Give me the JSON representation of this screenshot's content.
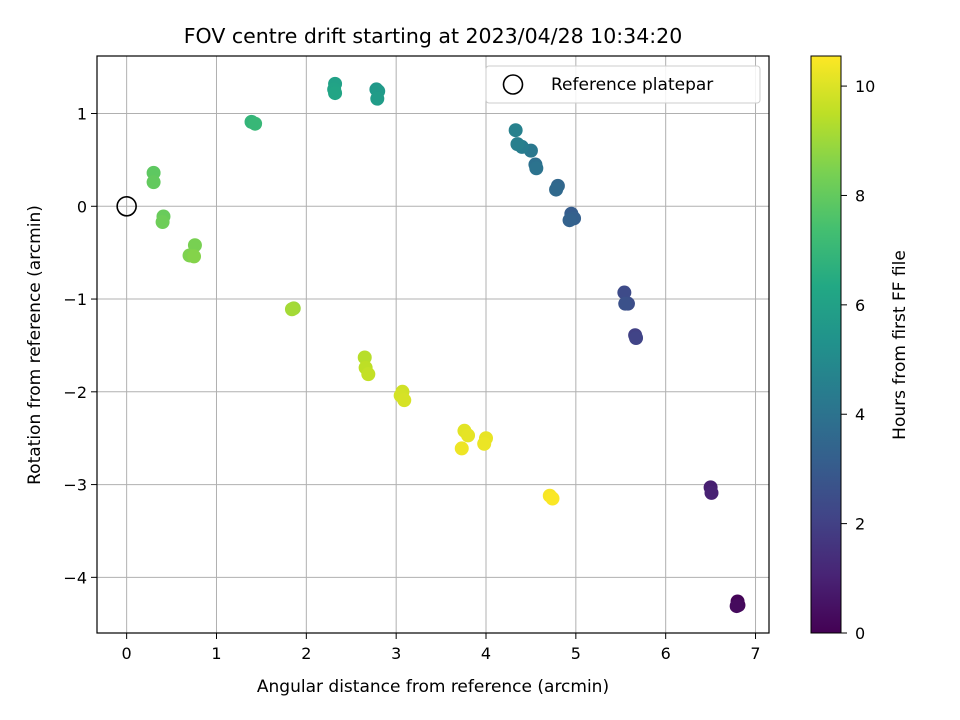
{
  "chart_data": {
    "type": "scatter",
    "title": "FOV centre drift starting at 2023/04/28 10:34:20",
    "xlabel": "Angular distance from reference (arcmin)",
    "ylabel": "Rotation from reference (arcmin)",
    "xlim": [
      -0.33,
      7.15
    ],
    "ylim": [
      -4.6,
      1.62
    ],
    "xticks": [
      0,
      1,
      2,
      3,
      4,
      5,
      6,
      7
    ],
    "yticks": [
      -4,
      -3,
      -2,
      -1,
      0,
      1
    ],
    "xtick_labels": [
      "0",
      "1",
      "2",
      "3",
      "4",
      "5",
      "6",
      "7"
    ],
    "ytick_labels": [
      "−4",
      "−3",
      "−2",
      "−1",
      "0",
      "1"
    ],
    "grid": true,
    "legend": {
      "placement": "upper right",
      "entries": [
        "Reference platepar"
      ]
    },
    "reference_point": {
      "x": 0,
      "y": 0,
      "label": "Reference platepar"
    },
    "colorbar": {
      "label": "Hours from first FF file",
      "colormap": "viridis",
      "range": [
        0,
        10.55
      ],
      "ticks": [
        0,
        2,
        4,
        6,
        8,
        10
      ],
      "tick_labels": [
        "0",
        "2",
        "4",
        "6",
        "8",
        "10"
      ]
    },
    "points": [
      {
        "x": 6.8,
        "y": -4.26,
        "hours": 0.1
      },
      {
        "x": 6.81,
        "y": -4.3,
        "hours": 0.2
      },
      {
        "x": 6.79,
        "y": -4.31,
        "hours": 0.3
      },
      {
        "x": 6.5,
        "y": -3.03,
        "hours": 0.9
      },
      {
        "x": 6.51,
        "y": -3.09,
        "hours": 1.0
      },
      {
        "x": 5.66,
        "y": -1.39,
        "hours": 2.0
      },
      {
        "x": 5.67,
        "y": -1.42,
        "hours": 2.1
      },
      {
        "x": 5.54,
        "y": -0.93,
        "hours": 2.4
      },
      {
        "x": 5.58,
        "y": -1.05,
        "hours": 2.5
      },
      {
        "x": 5.55,
        "y": -1.05,
        "hours": 2.6
      },
      {
        "x": 4.95,
        "y": -0.08,
        "hours": 3.1
      },
      {
        "x": 4.98,
        "y": -0.13,
        "hours": 3.2
      },
      {
        "x": 4.93,
        "y": -0.15,
        "hours": 3.3
      },
      {
        "x": 4.8,
        "y": 0.22,
        "hours": 3.5
      },
      {
        "x": 4.78,
        "y": 0.18,
        "hours": 3.6
      },
      {
        "x": 4.55,
        "y": 0.45,
        "hours": 3.9
      },
      {
        "x": 4.56,
        "y": 0.41,
        "hours": 4.0
      },
      {
        "x": 4.5,
        "y": 0.6,
        "hours": 4.2
      },
      {
        "x": 4.4,
        "y": 0.64,
        "hours": 4.4
      },
      {
        "x": 4.35,
        "y": 0.67,
        "hours": 4.5
      },
      {
        "x": 4.33,
        "y": 0.82,
        "hours": 4.6
      },
      {
        "x": 2.78,
        "y": 1.26,
        "hours": 5.6
      },
      {
        "x": 2.8,
        "y": 1.24,
        "hours": 5.7
      },
      {
        "x": 2.79,
        "y": 1.16,
        "hours": 5.8
      },
      {
        "x": 2.32,
        "y": 1.32,
        "hours": 6.0
      },
      {
        "x": 2.31,
        "y": 1.26,
        "hours": 6.1
      },
      {
        "x": 2.32,
        "y": 1.22,
        "hours": 6.2
      },
      {
        "x": 1.39,
        "y": 0.91,
        "hours": 6.9
      },
      {
        "x": 1.43,
        "y": 0.89,
        "hours": 7.0
      },
      {
        "x": 0.3,
        "y": 0.36,
        "hours": 7.9
      },
      {
        "x": 0.3,
        "y": 0.26,
        "hours": 8.0
      },
      {
        "x": 0.41,
        "y": -0.11,
        "hours": 8.1
      },
      {
        "x": 0.4,
        "y": -0.17,
        "hours": 8.2
      },
      {
        "x": 0.76,
        "y": -0.42,
        "hours": 8.4
      },
      {
        "x": 0.7,
        "y": -0.53,
        "hours": 8.5
      },
      {
        "x": 0.75,
        "y": -0.54,
        "hours": 8.6
      },
      {
        "x": 1.86,
        "y": -1.1,
        "hours": 9.0
      },
      {
        "x": 1.84,
        "y": -1.11,
        "hours": 9.1
      },
      {
        "x": 2.65,
        "y": -1.63,
        "hours": 9.4
      },
      {
        "x": 2.66,
        "y": -1.74,
        "hours": 9.5
      },
      {
        "x": 2.69,
        "y": -1.81,
        "hours": 9.6
      },
      {
        "x": 3.07,
        "y": -2.0,
        "hours": 9.8
      },
      {
        "x": 3.05,
        "y": -2.04,
        "hours": 9.85
      },
      {
        "x": 3.09,
        "y": -2.09,
        "hours": 9.9
      },
      {
        "x": 3.76,
        "y": -2.42,
        "hours": 10.1
      },
      {
        "x": 3.8,
        "y": -2.47,
        "hours": 10.15
      },
      {
        "x": 4.0,
        "y": -2.5,
        "hours": 10.2
      },
      {
        "x": 3.98,
        "y": -2.56,
        "hours": 10.25
      },
      {
        "x": 3.73,
        "y": -2.61,
        "hours": 10.3
      },
      {
        "x": 4.71,
        "y": -3.12,
        "hours": 10.45
      },
      {
        "x": 4.74,
        "y": -3.15,
        "hours": 10.5
      }
    ]
  }
}
